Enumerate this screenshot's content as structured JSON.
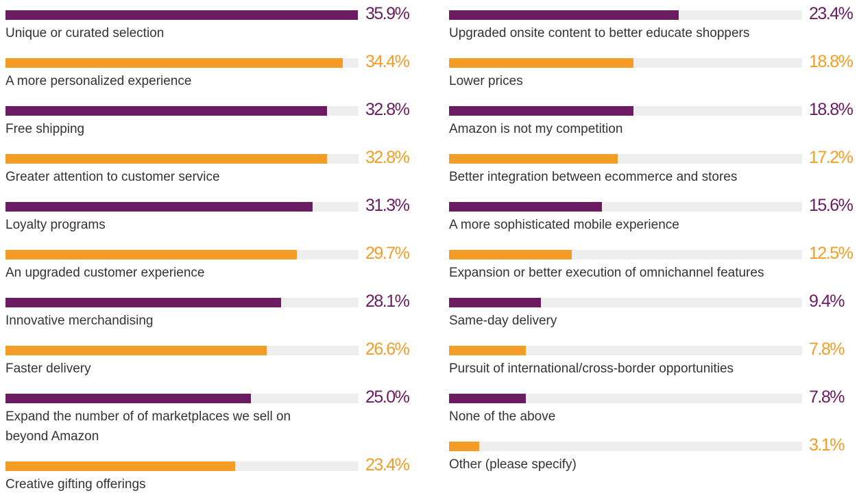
{
  "chart_data": [
    {
      "type": "bar",
      "categories": [
        "Unique or curated selection",
        "A more personalized experience",
        "Free shipping",
        "Greater attention to customer service",
        "Loyalty programs",
        "An upgraded customer experience",
        "Innovative merchandising",
        "Faster delivery",
        "Expand the number of of marketplaces we sell on beyond Amazon",
        "Creative gifting offerings"
      ],
      "values": [
        35.9,
        34.4,
        32.8,
        32.8,
        31.3,
        29.7,
        28.1,
        26.6,
        25.0,
        23.4
      ],
      "value_labels": [
        "35.9%",
        "34.4%",
        "32.8%",
        "32.8%",
        "31.3%",
        "29.7%",
        "28.1%",
        "26.6%",
        "25.0%",
        "23.4%"
      ],
      "colors": [
        "#6b1b62",
        "#f39c26",
        "#6b1b62",
        "#f39c26",
        "#6b1b62",
        "#f39c26",
        "#6b1b62",
        "#f39c26",
        "#6b1b62",
        "#f39c26"
      ],
      "xlim": [
        0,
        36
      ]
    },
    {
      "type": "bar",
      "categories": [
        "Upgraded onsite content to better educate shoppers",
        "Lower prices",
        "Amazon is not my competition",
        "Better integration between ecommerce and stores",
        "A more sophisticated mobile experience",
        "Expansion or better execution of omnichannel features",
        "Same-day delivery",
        "Pursuit of international/cross-border opportunities",
        "None of the above",
        "Other (please specify)"
      ],
      "values": [
        23.4,
        18.8,
        18.8,
        17.2,
        15.6,
        12.5,
        9.4,
        7.8,
        7.8,
        3.1
      ],
      "value_labels": [
        "23.4%",
        "18.8%",
        "18.8%",
        "17.2%",
        "15.6%",
        "12.5%",
        "9.4%",
        "7.8%",
        "7.8%",
        "3.1%"
      ],
      "colors": [
        "#6b1b62",
        "#f39c26",
        "#6b1b62",
        "#f39c26",
        "#6b1b62",
        "#f39c26",
        "#6b1b62",
        "#f39c26",
        "#6b1b62",
        "#f39c26"
      ],
      "xlim": [
        0,
        36
      ]
    }
  ]
}
